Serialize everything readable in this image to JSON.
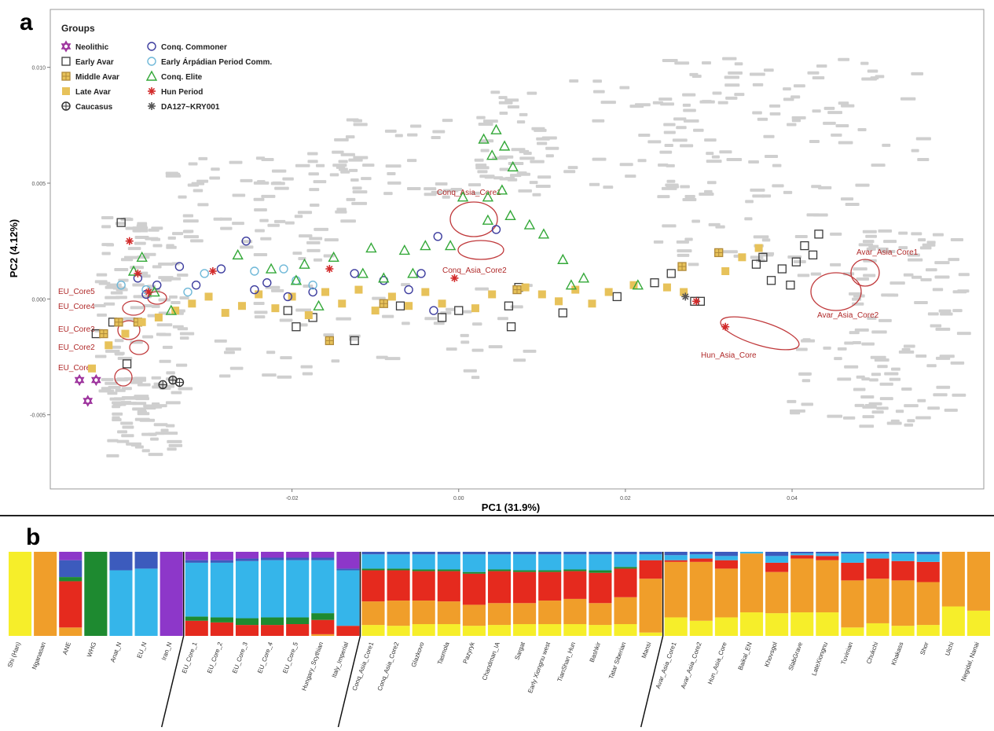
{
  "panel_labels": {
    "a": "a",
    "b": "b"
  },
  "chart_data": [
    {
      "type": "scatter",
      "panel": "a",
      "xlabel": "PC1 (31.9%)",
      "ylabel": "PC2 (4.12%)",
      "xlim": [
        -0.049,
        0.063
      ],
      "ylim": [
        -0.0082,
        0.0125
      ],
      "x_ticks": [
        -0.02,
        0.0,
        0.02,
        0.04
      ],
      "x_tick_labels": [
        "-0.02",
        "0.00",
        "0.02",
        "0.04"
      ],
      "y_ticks": [
        -0.005,
        0.0,
        0.005,
        0.01
      ],
      "y_tick_labels": [
        "-0.005",
        "0.000",
        "0.005",
        "0.010"
      ],
      "legend_title": "Groups",
      "legend_position": "top-left",
      "series": [
        {
          "name": "Neolithic",
          "marker": "hexagram",
          "color": "#9b2f9b",
          "points": [
            [
              -0.0455,
              -0.0035
            ],
            [
              -0.0435,
              -0.0035
            ],
            [
              -0.0445,
              -0.0044
            ]
          ]
        },
        {
          "name": "Early Avar",
          "marker": "square",
          "color": "#3a3a3a",
          "points": [
            [
              -0.0435,
              -0.0015
            ],
            [
              -0.0415,
              -0.001
            ],
            [
              -0.0405,
              0.0033
            ],
            [
              -0.0398,
              -0.0028
            ],
            [
              -0.0205,
              -0.0005
            ],
            [
              -0.0195,
              -0.0012
            ],
            [
              -0.0175,
              -0.0008
            ],
            [
              -0.0125,
              -0.0018
            ],
            [
              -0.007,
              -0.0003
            ],
            [
              -0.002,
              -0.0008
            ],
            [
              0.0,
              -0.0005
            ],
            [
              0.006,
              -0.0003
            ],
            [
              0.0063,
              -0.0012
            ],
            [
              0.0072,
              0.0005
            ],
            [
              0.0125,
              -0.0006
            ],
            [
              0.019,
              0.0001
            ],
            [
              0.0235,
              0.0007
            ],
            [
              0.0255,
              0.0011
            ],
            [
              0.0283,
              -0.0001
            ],
            [
              0.029,
              -0.0001
            ],
            [
              0.0357,
              0.0015
            ],
            [
              0.0365,
              0.0018
            ],
            [
              0.0375,
              0.0008
            ],
            [
              0.0388,
              0.0013
            ],
            [
              0.0398,
              0.0006
            ],
            [
              0.0405,
              0.0016
            ],
            [
              0.0415,
              0.0023
            ],
            [
              0.0425,
              0.0019
            ],
            [
              0.0432,
              0.0028
            ]
          ]
        },
        {
          "name": "Middle Avar",
          "marker": "square-plus",
          "color": "#b08a3a",
          "points": [
            [
              -0.0426,
              -0.0015
            ],
            [
              -0.0408,
              -0.001
            ],
            [
              -0.0385,
              -0.001
            ],
            [
              -0.0155,
              -0.0018
            ],
            [
              -0.009,
              -0.0002
            ],
            [
              0.007,
              0.0004
            ],
            [
              0.0268,
              0.0014
            ],
            [
              0.0312,
              0.002
            ]
          ]
        },
        {
          "name": "Late Avar",
          "marker": "square-filled",
          "color": "#e7c25a",
          "points": [
            [
              -0.044,
              -0.003
            ],
            [
              -0.042,
              -0.002
            ],
            [
              -0.04,
              -0.0015
            ],
            [
              -0.038,
              -0.001
            ],
            [
              -0.036,
              -0.0008
            ],
            [
              -0.034,
              -0.0005
            ],
            [
              -0.032,
              -0.0002
            ],
            [
              -0.03,
              0.0001
            ],
            [
              -0.028,
              -0.0006
            ],
            [
              -0.026,
              -0.0003
            ],
            [
              -0.024,
              0.0002
            ],
            [
              -0.022,
              -0.0004
            ],
            [
              -0.02,
              0.0001
            ],
            [
              -0.018,
              -0.0007
            ],
            [
              -0.016,
              0.0003
            ],
            [
              -0.014,
              -0.0002
            ],
            [
              -0.012,
              0.0004
            ],
            [
              -0.01,
              -0.0005
            ],
            [
              -0.008,
              0.0001
            ],
            [
              -0.006,
              -0.0003
            ],
            [
              -0.004,
              0.0003
            ],
            [
              -0.002,
              -0.0002
            ],
            [
              0.002,
              -0.0004
            ],
            [
              0.004,
              0.0002
            ],
            [
              0.008,
              0.0005
            ],
            [
              0.01,
              0.0002
            ],
            [
              0.012,
              -0.0001
            ],
            [
              0.014,
              0.0004
            ],
            [
              0.016,
              -0.0002
            ],
            [
              0.018,
              0.0003
            ],
            [
              0.021,
              0.0006
            ],
            [
              0.025,
              0.0005
            ],
            [
              0.027,
              0.0003
            ],
            [
              0.032,
              0.0012
            ],
            [
              0.034,
              0.0018
            ],
            [
              0.036,
              0.0022
            ]
          ]
        },
        {
          "name": "Caucasus",
          "marker": "circle-plus",
          "color": "#333333",
          "points": [
            [
              -0.0355,
              -0.0037
            ],
            [
              -0.0343,
              -0.0035
            ],
            [
              -0.0335,
              -0.0036
            ]
          ]
        },
        {
          "name": "Conq. Commoner",
          "marker": "circle",
          "color": "#3c3c9e",
          "points": [
            [
              -0.0385,
              0.0009
            ],
            [
              -0.0375,
              0.0002
            ],
            [
              -0.0362,
              0.0006
            ],
            [
              -0.0335,
              0.0014
            ],
            [
              -0.0315,
              0.0006
            ],
            [
              -0.0285,
              0.0013
            ],
            [
              -0.0255,
              0.0025
            ],
            [
              -0.0245,
              0.0004
            ],
            [
              -0.023,
              0.0007
            ],
            [
              -0.0205,
              0.0001
            ],
            [
              -0.0175,
              0.0003
            ],
            [
              -0.0125,
              0.0011
            ],
            [
              -0.009,
              0.0008
            ],
            [
              -0.006,
              0.0004
            ],
            [
              -0.0045,
              0.0011
            ],
            [
              -0.0025,
              0.0027
            ],
            [
              -0.003,
              -0.0005
            ],
            [
              0.0045,
              0.003
            ]
          ]
        },
        {
          "name": "Early Árpádian Period Comm.",
          "marker": "circle",
          "color": "#6fb8d8",
          "points": [
            [
              -0.0405,
              0.0006
            ],
            [
              -0.0375,
              0.0004
            ],
            [
              -0.0325,
              0.0003
            ],
            [
              -0.0305,
              0.0011
            ],
            [
              -0.0245,
              0.0012
            ],
            [
              -0.021,
              0.0013
            ],
            [
              -0.0195,
              0.0008
            ],
            [
              -0.0175,
              0.0006
            ]
          ]
        },
        {
          "name": "Conq. Elite",
          "marker": "triangle",
          "color": "#33a838",
          "points": [
            [
              -0.039,
              0.0012
            ],
            [
              -0.038,
              0.0018
            ],
            [
              -0.0365,
              0.0003
            ],
            [
              -0.0345,
              -0.0005
            ],
            [
              -0.0265,
              0.0019
            ],
            [
              -0.0225,
              0.0013
            ],
            [
              -0.0195,
              0.0008
            ],
            [
              -0.0185,
              0.0015
            ],
            [
              -0.0168,
              -0.0003
            ],
            [
              -0.015,
              0.0018
            ],
            [
              -0.0115,
              0.0011
            ],
            [
              -0.0105,
              0.0022
            ],
            [
              -0.009,
              0.0009
            ],
            [
              -0.0065,
              0.0021
            ],
            [
              -0.0055,
              0.0011
            ],
            [
              -0.004,
              0.0023
            ],
            [
              -0.001,
              0.0023
            ],
            [
              0.0005,
              0.0044
            ],
            [
              0.003,
              0.0069
            ],
            [
              0.004,
              0.0062
            ],
            [
              0.0045,
              0.0073
            ],
            [
              0.0055,
              0.0066
            ],
            [
              0.0065,
              0.0057
            ],
            [
              0.0035,
              0.0044
            ],
            [
              0.0052,
              0.0047
            ],
            [
              0.0035,
              0.0034
            ],
            [
              0.0062,
              0.0036
            ],
            [
              0.0085,
              0.0032
            ],
            [
              0.0102,
              0.0028
            ],
            [
              0.0125,
              0.0017
            ],
            [
              0.0135,
              0.0006
            ],
            [
              0.015,
              0.0009
            ],
            [
              0.0215,
              0.0006
            ]
          ]
        },
        {
          "name": "Hun Period",
          "marker": "star",
          "color": "#d22a2a",
          "points": [
            [
              -0.0395,
              0.0025
            ],
            [
              -0.0385,
              0.0011
            ],
            [
              -0.0372,
              0.0003
            ],
            [
              -0.0295,
              0.0012
            ],
            [
              -0.0155,
              0.0013
            ],
            [
              -0.0005,
              0.0009
            ],
            [
              0.0285,
              -0.0001
            ],
            [
              0.032,
              -0.0012
            ]
          ]
        },
        {
          "name": "DA127~KRY001",
          "marker": "star",
          "color": "#555555",
          "points": [
            [
              0.0272,
              0.0001
            ]
          ]
        }
      ],
      "core_labels": [
        "EU_Core5",
        "EU_Core4",
        "EU_Core3",
        "EU_Core2",
        "EU_Core1",
        "Conq_Asia_Core1",
        "Conq_Asia_Core2",
        "Avar_Asia_Core1",
        "Avar_Asia_Core2",
        "Hun_Asia_Core"
      ]
    },
    {
      "type": "bar",
      "panel": "b",
      "stacked": true,
      "normalized": true,
      "component_colors": [
        "#f6ee2a",
        "#f09e2a",
        "#e52a1e",
        "#1e8a30",
        "#35b5ea",
        "#3c5bbd",
        "#8d37c9"
      ],
      "categories": [
        "Shi (Han)",
        "Nganasan",
        "ANE",
        "WHG",
        "Anat_N",
        "EU_N",
        "Iran_N",
        "EU_Core_1",
        "EU_Core_2",
        "EU_Core_3",
        "EU_Core_4",
        "EU_Core_5",
        "Hungary_Scythian",
        "Italy_Imperial",
        "Conq_Asia_Core1",
        "Conq_Asia_Core2",
        "Glazkovo",
        "Tasmola",
        "Pazyryk",
        "Chandman_IA",
        "Sargat",
        "Early Xiongnu west",
        "TianShan_Hun",
        "Bashkir",
        "Tatar Siberian",
        "Mansi",
        "Avar_Asia_Core1",
        "Avar_Asia_Core2",
        "Hun_Asia_Core",
        "Baikal_EN",
        "Khovsgol",
        "SlabGrave",
        "LateXiongnu",
        "Tuvinian",
        "Chukchi",
        "Khakass",
        "Shor",
        "Ulchi",
        "Negidal, Nanai"
      ],
      "values": [
        [
          1.0,
          0,
          0,
          0,
          0,
          0,
          0
        ],
        [
          0,
          1.0,
          0,
          0,
          0,
          0,
          0
        ],
        [
          0,
          0.1,
          0.55,
          0.05,
          0,
          0.2,
          0.1
        ],
        [
          0,
          0,
          0,
          1.0,
          0,
          0,
          0
        ],
        [
          0,
          0,
          0,
          0,
          0.78,
          0.22,
          0
        ],
        [
          0,
          0,
          0,
          0,
          0.8,
          0.2,
          0
        ],
        [
          0,
          0,
          0,
          0,
          0,
          0,
          1.0
        ],
        [
          0,
          0,
          0.18,
          0.05,
          0.64,
          0.03,
          0.1
        ],
        [
          0,
          0,
          0.16,
          0.06,
          0.65,
          0.03,
          0.1
        ],
        [
          0,
          0,
          0.13,
          0.08,
          0.68,
          0.03,
          0.08
        ],
        [
          0,
          0,
          0.13,
          0.09,
          0.68,
          0.03,
          0.07
        ],
        [
          0,
          0,
          0.14,
          0.08,
          0.68,
          0.03,
          0.07
        ],
        [
          0,
          0.02,
          0.17,
          0.08,
          0.63,
          0.03,
          0.07
        ],
        [
          0,
          0,
          0.12,
          0,
          0.66,
          0.02,
          0.2
        ],
        [
          0.13,
          0.28,
          0.37,
          0.02,
          0.17,
          0.03,
          0
        ],
        [
          0.12,
          0.3,
          0.36,
          0.02,
          0.17,
          0.03,
          0
        ],
        [
          0.14,
          0.28,
          0.35,
          0.02,
          0.18,
          0.03,
          0
        ],
        [
          0.14,
          0.27,
          0.36,
          0.02,
          0.18,
          0.03,
          0
        ],
        [
          0.12,
          0.25,
          0.37,
          0.02,
          0.21,
          0.03,
          0
        ],
        [
          0.13,
          0.26,
          0.38,
          0.02,
          0.18,
          0.03,
          0
        ],
        [
          0.14,
          0.25,
          0.37,
          0.02,
          0.19,
          0.03,
          0
        ],
        [
          0.14,
          0.28,
          0.34,
          0.02,
          0.19,
          0.03,
          0
        ],
        [
          0.14,
          0.3,
          0.33,
          0.02,
          0.18,
          0.03,
          0
        ],
        [
          0.13,
          0.26,
          0.36,
          0.03,
          0.19,
          0.03,
          0
        ],
        [
          0.14,
          0.32,
          0.34,
          0.02,
          0.15,
          0.03,
          0
        ],
        [
          0.04,
          0.64,
          0.22,
          0,
          0.07,
          0.03,
          0
        ],
        [
          0.22,
          0.66,
          0.02,
          0,
          0.06,
          0.04,
          0
        ],
        [
          0.18,
          0.7,
          0.04,
          0,
          0.05,
          0.03,
          0
        ],
        [
          0.22,
          0.58,
          0.1,
          0,
          0.05,
          0.05,
          0
        ],
        [
          0.28,
          0.7,
          0,
          0,
          0.02,
          0,
          0
        ],
        [
          0.27,
          0.49,
          0.11,
          0,
          0.08,
          0.05,
          0
        ],
        [
          0.28,
          0.64,
          0.04,
          0,
          0.02,
          0.02,
          0
        ],
        [
          0.28,
          0.62,
          0.05,
          0,
          0.03,
          0.02,
          0
        ],
        [
          0.1,
          0.56,
          0.21,
          0,
          0.11,
          0.02,
          0
        ],
        [
          0.15,
          0.53,
          0.24,
          0,
          0.06,
          0.02,
          0
        ],
        [
          0.12,
          0.54,
          0.23,
          0,
          0.09,
          0.02,
          0
        ],
        [
          0.13,
          0.51,
          0.24,
          0,
          0.09,
          0.03,
          0
        ],
        [
          0.35,
          0.65,
          0,
          0,
          0,
          0,
          0
        ],
        [
          0.3,
          0.7,
          0,
          0,
          0,
          0,
          0
        ]
      ],
      "divider_after_index": [
        6,
        13,
        25
      ]
    }
  ]
}
